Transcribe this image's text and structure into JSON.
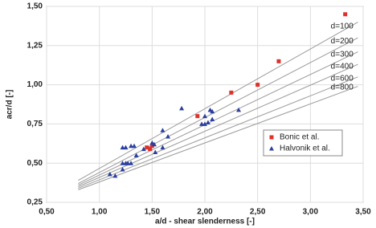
{
  "chart_data": {
    "type": "scatter",
    "xlabel": "a/d - shear slenderness [-]",
    "ylabel": "acr/d [-]",
    "xlim": [
      0.5,
      3.5
    ],
    "ylim": [
      0.25,
      1.5
    ],
    "xticks": [
      {
        "value": 0.5,
        "label": "0,50"
      },
      {
        "value": 1,
        "label": "1,00"
      },
      {
        "value": 1.5,
        "label": "1,50"
      },
      {
        "value": 2,
        "label": "2,00"
      },
      {
        "value": 2.5,
        "label": "2,50"
      },
      {
        "value": 3,
        "label": "3,00"
      },
      {
        "value": 3.5,
        "label": "3,50"
      }
    ],
    "yticks": [
      {
        "value": 0.25,
        "label": "0,25"
      },
      {
        "value": 0.5,
        "label": "0,50"
      },
      {
        "value": 0.75,
        "label": "0,75"
      },
      {
        "value": 1,
        "label": "1,00"
      },
      {
        "value": 1.25,
        "label": "1,25"
      },
      {
        "value": 1.5,
        "label": "1,50"
      }
    ],
    "grid": true,
    "lines": [
      {
        "name": "d=100",
        "color": "#9a9a9a",
        "x": [
          0.8,
          3.45
        ],
        "values": [
          0.39,
          1.4
        ]
      },
      {
        "name": "d=200",
        "color": "#9a9a9a",
        "x": [
          0.8,
          3.45
        ],
        "values": [
          0.37,
          1.3
        ]
      },
      {
        "name": "d=300",
        "color": "#9a9a9a",
        "x": [
          0.8,
          3.45
        ],
        "values": [
          0.36,
          1.21
        ]
      },
      {
        "name": "d=400",
        "color": "#9a9a9a",
        "x": [
          0.8,
          3.45
        ],
        "values": [
          0.35,
          1.13
        ]
      },
      {
        "name": "d=600",
        "color": "#9a9a9a",
        "x": [
          0.8,
          3.45
        ],
        "values": [
          0.34,
          1.05
        ]
      },
      {
        "name": "d=800",
        "color": "#9a9a9a",
        "x": [
          0.8,
          3.45
        ],
        "values": [
          0.33,
          0.99
        ]
      }
    ],
    "series": [
      {
        "name": "Bonic et al.",
        "color": "#e0302a",
        "marker": "square",
        "x": [
          3.33,
          2.7,
          2.25,
          2.5,
          1.93,
          1.5,
          1.45,
          1.48
        ],
        "values": [
          1.45,
          1.15,
          0.95,
          1.0,
          0.8,
          0.61,
          0.6,
          0.59
        ]
      },
      {
        "name": "Halvonik et al.",
        "color": "#2a3ea0",
        "marker": "triangle",
        "x": [
          1.78,
          2.05,
          2.07,
          2.0,
          2.32,
          1.97,
          2.0,
          2.03,
          2.07,
          1.6,
          1.65,
          1.5,
          1.52,
          1.53,
          1.33,
          1.3,
          1.22,
          1.25,
          1.42,
          1.6,
          1.25,
          1.27,
          1.3,
          1.22,
          1.35,
          1.1,
          1.15,
          1.22
        ],
        "values": [
          0.85,
          0.84,
          0.83,
          0.8,
          0.84,
          0.75,
          0.75,
          0.76,
          0.78,
          0.71,
          0.67,
          0.63,
          0.62,
          0.57,
          0.61,
          0.61,
          0.6,
          0.6,
          0.59,
          0.6,
          0.5,
          0.5,
          0.5,
          0.5,
          0.55,
          0.43,
          0.42,
          0.46
        ]
      }
    ],
    "legend": "lower-right"
  }
}
